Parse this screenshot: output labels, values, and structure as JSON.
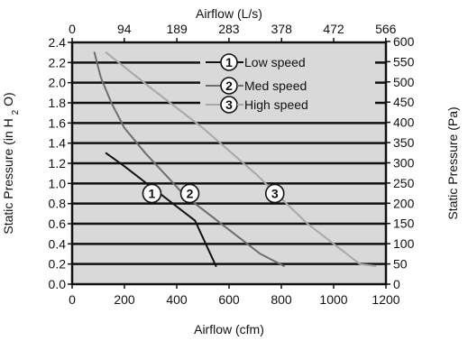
{
  "chart_data": {
    "type": "line",
    "title": "",
    "xlabel": "Airflow (cfm)",
    "x2label": "Airflow (L/s)",
    "ylabel_prefix": "Static Pressure (in H",
    "ylabel_sub": "2",
    "ylabel_suffix": "O)",
    "y2label": "Static Pressure (Pa)",
    "xlim": [
      0,
      1200
    ],
    "ylim": [
      0,
      2.4
    ],
    "x_ticks": [
      0,
      200,
      400,
      600,
      800,
      1000,
      1200
    ],
    "x_tick_labels": [
      "0",
      "200",
      "400",
      "600",
      "800",
      "1000",
      "1200"
    ],
    "y_ticks": [
      0,
      0.2,
      0.4,
      0.6,
      0.8,
      1.0,
      1.2,
      1.4,
      1.6,
      1.8,
      2.0,
      2.2,
      2.4
    ],
    "y_tick_labels": [
      "0.0",
      "0.2",
      "0.4",
      "0.6",
      "0.8",
      "1.0",
      "1.2",
      "1.4",
      "1.6",
      "1.8",
      "2.0",
      "2.2",
      "2.4"
    ],
    "x2_ticks_cfm": [
      0,
      199.2,
      400.5,
      599.7,
      800.9,
      1000.1,
      1199.3
    ],
    "x2_tick_labels": [
      "0",
      "94",
      "189",
      "283",
      "378",
      "472",
      "566"
    ],
    "y2_ticks_inh2o": [
      0,
      0.2008,
      0.4016,
      0.6024,
      0.8032,
      1.004,
      1.2048,
      1.4056,
      1.6064,
      1.8072,
      2.008,
      2.2088,
      2.4096
    ],
    "y2_tick_labels": [
      "0",
      "50",
      "100",
      "150",
      "200",
      "250",
      "300",
      "350",
      "400",
      "450",
      "500",
      "550",
      "600"
    ],
    "grid": true,
    "legend_position": "top-right",
    "background_color": "#d9d9d9",
    "series": [
      {
        "name": "Low speed",
        "marker": "1",
        "color": "#111111",
        "points": [
          [
            130,
            1.3
          ],
          [
            200,
            1.17
          ],
          [
            270,
            1.03
          ],
          [
            340,
            0.89
          ],
          [
            400,
            0.77
          ],
          [
            470,
            0.63
          ],
          [
            550,
            0.18
          ]
        ]
      },
      {
        "name": "Med speed",
        "marker": "2",
        "color": "#6e6e6e",
        "points": [
          [
            85,
            2.3
          ],
          [
            110,
            2.05
          ],
          [
            150,
            1.8
          ],
          [
            200,
            1.55
          ],
          [
            280,
            1.3
          ],
          [
            370,
            1.05
          ],
          [
            430,
            0.88
          ],
          [
            520,
            0.7
          ],
          [
            620,
            0.5
          ],
          [
            720,
            0.3
          ],
          [
            810,
            0.18
          ]
        ]
      },
      {
        "name": "High speed",
        "marker": "3",
        "color": "#a8a8a8",
        "points": [
          [
            130,
            2.3
          ],
          [
            300,
            1.95
          ],
          [
            500,
            1.55
          ],
          [
            700,
            1.1
          ],
          [
            800,
            0.85
          ],
          [
            900,
            0.6
          ],
          [
            1000,
            0.4
          ],
          [
            1100,
            0.2
          ],
          [
            1160,
            0.18
          ]
        ]
      }
    ],
    "series_marker_positions": [
      [
        305,
        0.9
      ],
      [
        450,
        0.9
      ],
      [
        775,
        0.9
      ]
    ]
  }
}
